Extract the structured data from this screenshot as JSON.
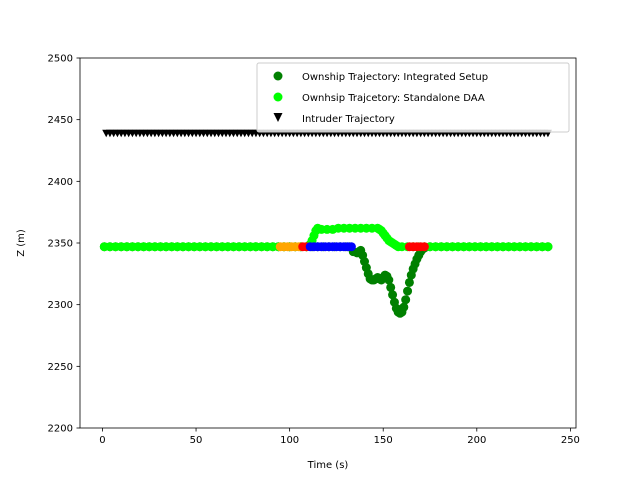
{
  "chart_data": {
    "type": "scatter",
    "title": "",
    "xlabel": "Time (s)",
    "ylabel": "Z (m)",
    "xlim": [
      -12,
      253
    ],
    "ylim": [
      2200,
      2500
    ],
    "xticks": [
      0,
      50,
      100,
      150,
      200,
      250
    ],
    "yticks": [
      2200,
      2250,
      2300,
      2350,
      2400,
      2450,
      2500
    ],
    "grid": false,
    "legend_position": "upper-right",
    "series": [
      {
        "name": "Ownship Trajectory: Integrated Setup",
        "color": "#008000",
        "marker": "circle",
        "x": [
          1,
          4,
          7,
          10,
          13,
          16,
          19,
          22,
          25,
          28,
          31,
          34,
          37,
          40,
          43,
          46,
          49,
          52,
          55,
          58,
          61,
          64,
          67,
          70,
          73,
          76,
          79,
          82,
          85,
          88,
          91,
          94,
          97,
          100,
          103,
          106,
          109,
          112,
          115,
          118,
          121,
          124,
          127,
          130,
          132,
          134,
          136,
          137,
          138,
          139,
          140,
          141,
          142,
          143,
          144,
          145,
          146,
          147,
          148,
          149,
          150,
          151,
          152,
          153,
          154,
          155,
          156,
          157,
          158,
          159,
          160,
          161,
          162,
          163,
          164,
          165,
          166,
          167,
          168,
          169,
          170,
          171,
          172,
          175,
          178,
          181,
          184,
          187,
          190,
          193,
          196,
          199,
          202,
          205,
          208,
          211,
          214,
          217,
          220,
          223,
          226,
          229,
          232,
          235,
          238
        ],
        "y": [
          2347,
          2347,
          2347,
          2347,
          2347,
          2347,
          2347,
          2347,
          2347,
          2347,
          2347,
          2347,
          2347,
          2347,
          2347,
          2347,
          2347,
          2347,
          2347,
          2347,
          2347,
          2347,
          2347,
          2347,
          2347,
          2347,
          2347,
          2347,
          2347,
          2347,
          2347,
          2347,
          2347,
          2347,
          2347,
          2347,
          2347,
          2347,
          2347,
          2347,
          2347,
          2347,
          2347,
          2347,
          2347,
          2343,
          2342,
          2343,
          2344,
          2340,
          2335,
          2330,
          2325,
          2321,
          2320,
          2320,
          2321,
          2322,
          2321,
          2320,
          2322,
          2324,
          2323,
          2320,
          2314,
          2308,
          2302,
          2297,
          2294,
          2293,
          2294,
          2298,
          2304,
          2311,
          2318,
          2324,
          2329,
          2333,
          2337,
          2340,
          2343,
          2345,
          2346,
          2347,
          2347,
          2347,
          2347,
          2347,
          2347,
          2347,
          2347,
          2347,
          2347,
          2347,
          2347,
          2347,
          2347,
          2347,
          2347,
          2347,
          2347,
          2347,
          2347,
          2347,
          2347
        ]
      },
      {
        "name": "Ownhsip Trajcetory: Standalone DAA",
        "color": "#00ff00",
        "marker": "circle",
        "x": [
          1,
          4,
          7,
          10,
          13,
          16,
          19,
          22,
          25,
          28,
          31,
          34,
          37,
          40,
          43,
          46,
          49,
          52,
          55,
          58,
          61,
          64,
          67,
          70,
          73,
          76,
          79,
          82,
          85,
          88,
          91,
          94,
          97,
          100,
          103,
          106,
          109,
          111,
          112,
          113,
          114,
          115,
          117,
          120,
          123,
          126,
          129,
          132,
          135,
          138,
          141,
          144,
          147,
          148,
          149,
          150,
          151,
          152,
          153,
          154,
          155,
          156,
          157,
          158,
          160,
          163,
          166,
          169,
          172,
          175,
          178,
          181,
          184,
          187,
          190,
          193,
          196,
          199,
          202,
          205,
          208,
          211,
          214,
          217,
          220,
          223,
          226,
          229,
          232,
          235,
          238
        ],
        "y": [
          2347,
          2347,
          2347,
          2347,
          2347,
          2347,
          2347,
          2347,
          2347,
          2347,
          2347,
          2347,
          2347,
          2347,
          2347,
          2347,
          2347,
          2347,
          2347,
          2347,
          2347,
          2347,
          2347,
          2347,
          2347,
          2347,
          2347,
          2347,
          2347,
          2347,
          2347,
          2347,
          2347,
          2347,
          2347,
          2347,
          2347,
          2349,
          2352,
          2356,
          2360,
          2362,
          2361,
          2361,
          2361,
          2362,
          2362,
          2362,
          2362,
          2362,
          2362,
          2362,
          2362,
          2361,
          2360,
          2358,
          2356,
          2354,
          2352,
          2351,
          2350,
          2349,
          2348,
          2347,
          2347,
          2347,
          2347,
          2347,
          2347,
          2347,
          2347,
          2347,
          2347,
          2347,
          2347,
          2347,
          2347,
          2347,
          2347,
          2347,
          2347,
          2347,
          2347,
          2347,
          2347,
          2347,
          2347,
          2347,
          2347,
          2347,
          2347
        ]
      },
      {
        "name": "Intruder Trajectory",
        "color": "#000000",
        "marker": "triangle-down",
        "x_start": 2,
        "x_end": 239,
        "x_step": 2,
        "y_constant": 2439
      }
    ],
    "highlight_segments": [
      {
        "color": "#ffa500",
        "x": [
          95,
          97,
          99,
          101,
          103,
          105
        ],
        "y": [
          2347,
          2347,
          2347,
          2347,
          2347,
          2347
        ]
      },
      {
        "color": "#ff0000",
        "x": [
          107,
          109
        ],
        "y": [
          2347,
          2347
        ]
      },
      {
        "color": "#0000ff",
        "x": [
          111,
          113,
          115,
          117,
          119,
          121,
          123,
          125,
          127,
          129,
          131,
          133
        ],
        "y": [
          2347,
          2347,
          2347,
          2347,
          2347,
          2347,
          2347,
          2347,
          2347,
          2347,
          2347,
          2347
        ]
      },
      {
        "color": "#ff0000",
        "x": [
          164,
          166,
          168,
          170,
          172
        ],
        "y": [
          2347,
          2347,
          2347,
          2347,
          2347
        ]
      }
    ]
  }
}
